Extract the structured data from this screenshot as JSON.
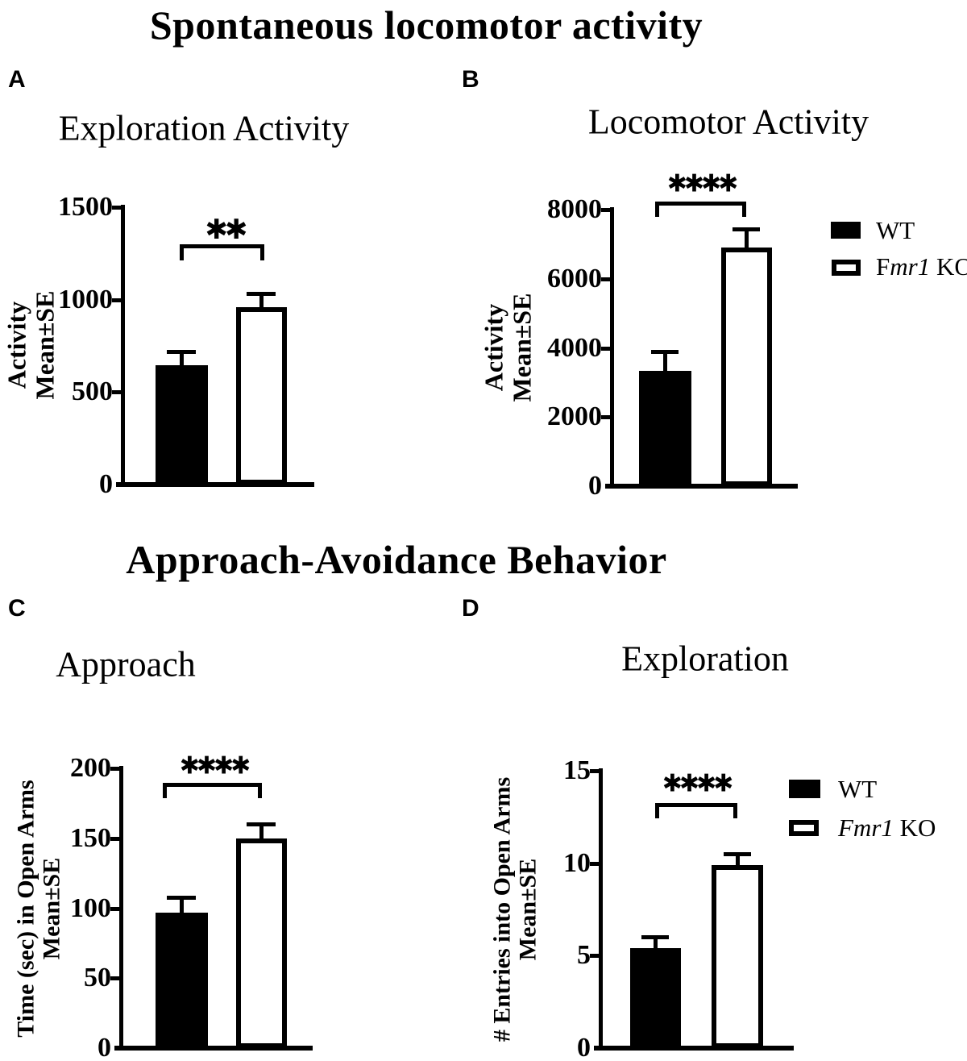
{
  "colors": {
    "ink": "#000000",
    "background": "#ffffff",
    "bar_wt_fill": "#000000",
    "bar_ko_fill": "#ffffff"
  },
  "sections": [
    {
      "title": "Spontaneous locomotor activity"
    },
    {
      "title": "Approach-Avoidance Behavior"
    }
  ],
  "panel_letters": [
    "A",
    "B",
    "C",
    "D"
  ],
  "chart_data": [
    {
      "type": "bar",
      "panel": "A",
      "section": "Spontaneous locomotor activity",
      "title": "Exploration Activity",
      "categories": [
        "WT",
        "Fmr1 KO"
      ],
      "values": [
        645,
        960
      ],
      "upper_error_values": [
        720,
        1035
      ],
      "bar_styles": [
        "filled",
        "open"
      ],
      "ylabel": "Activity\nMean±SE",
      "xlabel": "",
      "ylim": [
        0,
        1500
      ],
      "yticks": [
        0,
        500,
        1000,
        1500
      ],
      "significance": "**",
      "legend": null
    },
    {
      "type": "bar",
      "panel": "B",
      "section": "Spontaneous locomotor activity",
      "title": "Locomotor Activity",
      "categories": [
        "WT",
        "Fmr1 KO"
      ],
      "values": [
        3340,
        6900
      ],
      "upper_error_values": [
        3900,
        7430
      ],
      "bar_styles": [
        "filled",
        "open"
      ],
      "ylabel": "Activity\nMean±SE",
      "xlabel": "",
      "ylim": [
        0,
        8000
      ],
      "yticks": [
        0,
        2000,
        4000,
        6000,
        8000
      ],
      "significance": "****",
      "legend": {
        "position": "right",
        "items": [
          {
            "swatch": "filled",
            "parts": [
              {
                "text": "WT",
                "italic": false
              }
            ]
          },
          {
            "swatch": "open",
            "parts": [
              {
                "text": "F",
                "italic": false
              },
              {
                "text": "mr1",
                "italic": true
              },
              {
                "text": " KO",
                "italic": false
              }
            ]
          }
        ]
      }
    },
    {
      "type": "bar",
      "panel": "C",
      "section": "Approach-Avoidance Behavior",
      "title": "Approach",
      "categories": [
        "WT",
        "Fmr1 KO"
      ],
      "values": [
        97,
        150
      ],
      "upper_error_values": [
        108,
        160
      ],
      "bar_styles": [
        "filled",
        "open"
      ],
      "ylabel": "Time (sec) in Open Arms\nMean±SE",
      "xlabel": "",
      "ylim": [
        0,
        200
      ],
      "yticks": [
        0,
        50,
        100,
        150,
        200
      ],
      "significance": "****",
      "legend": null
    },
    {
      "type": "bar",
      "panel": "D",
      "section": "Approach-Avoidance Behavior",
      "title": "Exploration",
      "categories": [
        "WT",
        "Fmr1 KO"
      ],
      "values": [
        5.4,
        9.9
      ],
      "upper_error_values": [
        6.0,
        10.5
      ],
      "bar_styles": [
        "filled",
        "open"
      ],
      "ylabel": "# Entries into Open Arms\nMean±SE",
      "xlabel": "",
      "ylim": [
        0,
        15
      ],
      "yticks": [
        0,
        5,
        10,
        15
      ],
      "significance": "****",
      "legend": {
        "position": "right",
        "items": [
          {
            "swatch": "filled",
            "parts": [
              {
                "text": "WT",
                "italic": false
              }
            ]
          },
          {
            "swatch": "open",
            "parts": [
              {
                "text": "Fmr1",
                "italic": true
              },
              {
                "text": " KO",
                "italic": false
              }
            ]
          }
        ]
      }
    }
  ]
}
